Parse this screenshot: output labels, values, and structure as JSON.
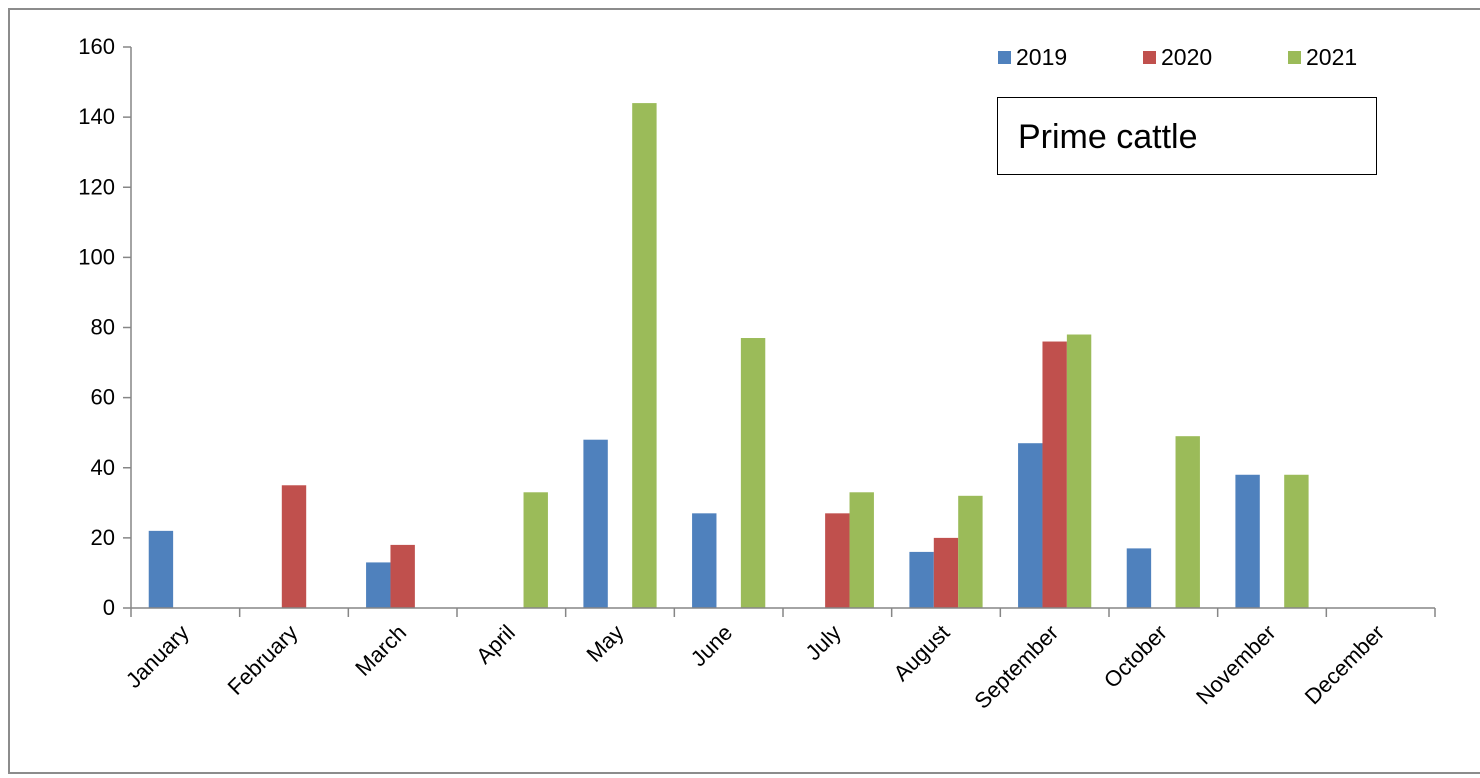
{
  "chart_data": {
    "type": "bar",
    "title": "",
    "xlabel": "",
    "ylabel": "",
    "annotation": "Prime cattle",
    "categories": [
      "January",
      "February",
      "March",
      "April",
      "May",
      "June",
      "July",
      "August",
      "September",
      "October",
      "November",
      "December"
    ],
    "series": [
      {
        "name": "2019",
        "color": "#4F81BD",
        "values": [
          22,
          0,
          13,
          0,
          48,
          27,
          0,
          16,
          47,
          17,
          38,
          0
        ]
      },
      {
        "name": "2020",
        "color": "#C0504D",
        "values": [
          0,
          35,
          18,
          0,
          0,
          0,
          27,
          20,
          76,
          0,
          0,
          0
        ]
      },
      {
        "name": "2021",
        "color": "#9BBB59",
        "values": [
          0,
          0,
          0,
          33,
          144,
          77,
          33,
          32,
          78,
          49,
          38,
          0
        ]
      }
    ],
    "ylim": [
      0,
      160
    ],
    "yticks": [
      "0",
      "20",
      "40",
      "60",
      "80",
      "100",
      "120",
      "140",
      "160"
    ],
    "grid": false,
    "legend_position": "top-right"
  }
}
